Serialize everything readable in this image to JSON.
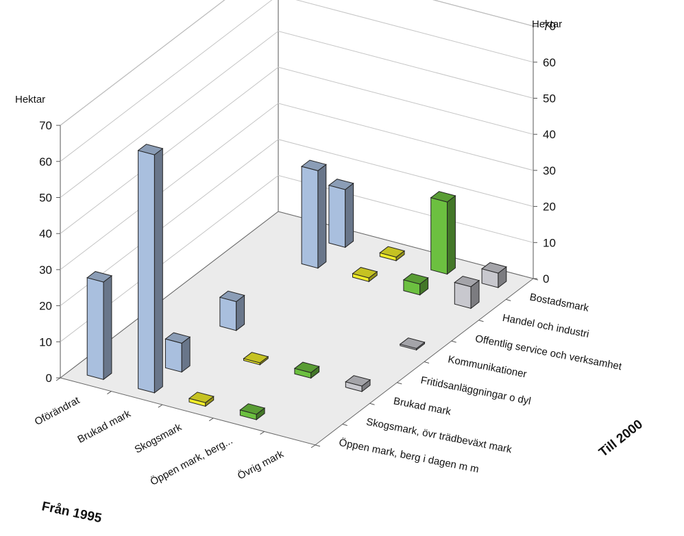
{
  "chart_data": {
    "type": "bar",
    "subtype": "3d-bar-matrix",
    "unit_left": "Hektar",
    "unit_right": "Hektar",
    "x_axis_title": "Från 1995",
    "y_axis_title": "Till 2000",
    "x_categories": [
      "Oförändrat",
      "Brukad mark",
      "Skogsmark",
      "Öppen mark, berg...",
      "Övrig mark"
    ],
    "y_categories": [
      "Bostadsmark",
      "Handel och industri",
      "Offentlig service och verksamhet",
      "Kommunikationer",
      "Fritidsanläggningar o dyl",
      "Brukad mark",
      "Skogsmark, övr trädbeväxt mark",
      "Öppen mark, berg i dagen m m"
    ],
    "z_ticks": [
      0,
      10,
      20,
      30,
      40,
      50,
      60,
      70
    ],
    "ylim": [
      0,
      70
    ],
    "colors": {
      "Oförändrat": "#a9bfde",
      "Brukad mark": "#a9bfde",
      "Skogsmark": "#f0ec2a",
      "Öppen mark, berg...": "#6cc040",
      "Övrig mark": "#c8c8ce"
    },
    "series": [
      {
        "x": "Oförändrat",
        "y": "Öppen mark, berg i dagen m m",
        "value": 27
      },
      {
        "x": "Brukad mark",
        "y": "Öppen mark, berg i dagen m m",
        "value": 66
      },
      {
        "x": "Brukad mark",
        "y": "Skogsmark, övr trädbevæxt mark",
        "value": 8
      },
      {
        "x": "Brukad mark",
        "y": "Fritidsanläggningar o dyl",
        "value": 8
      },
      {
        "x": "Brukad mark",
        "y": "Handel och industri",
        "value": 27
      },
      {
        "x": "Brukad mark",
        "y": "Bostadsmark",
        "value": 16
      },
      {
        "x": "Skogsmark",
        "y": "Öppen mark, berg i dagen m m",
        "value": 1
      },
      {
        "x": "Skogsmark",
        "y": "Brukad mark",
        "value": 0.5
      },
      {
        "x": "Skogsmark",
        "y": "Handel och industri",
        "value": 1
      },
      {
        "x": "Skogsmark",
        "y": "Bostadsmark",
        "value": 1
      },
      {
        "x": "Öppen mark, berg...",
        "y": "Öppen mark, berg i dagen m m",
        "value": 1.5
      },
      {
        "x": "Öppen mark, berg...",
        "y": "Brukad mark",
        "value": 1.5
      },
      {
        "x": "Öppen mark, berg...",
        "y": "Handel och industri",
        "value": 3
      },
      {
        "x": "Öppen mark, berg...",
        "y": "Bostadsmark",
        "value": 20
      },
      {
        "x": "Övrig mark",
        "y": "Brukad mark",
        "value": 1.5
      },
      {
        "x": "Övrig mark",
        "y": "Kommunikationer",
        "value": 0.3
      },
      {
        "x": "Övrig mark",
        "y": "Handel och industri",
        "value": 6
      },
      {
        "x": "Övrig mark",
        "y": "Bostadsmark",
        "value": 4
      }
    ]
  }
}
